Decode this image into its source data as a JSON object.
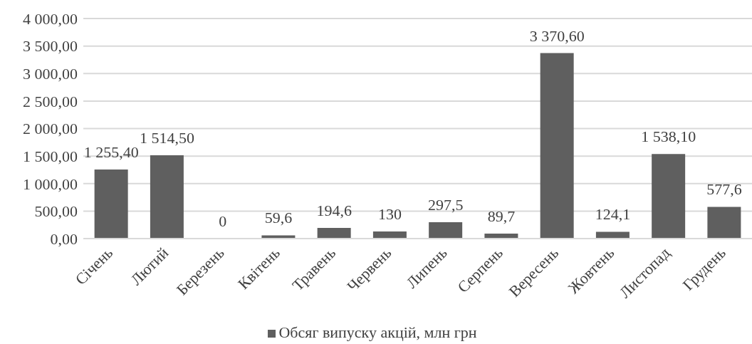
{
  "chart_data": {
    "type": "bar",
    "categories": [
      "Січень",
      "Лютий",
      "Березень",
      "Квітень",
      "Травень",
      "Червень",
      "Липень",
      "Серпень",
      "Вересень",
      "Жовтень",
      "Листопад",
      "Грудень"
    ],
    "series": [
      {
        "name": "Обсяг випуску акцій, млн грн",
        "color": "#5f5f5f",
        "values": [
          1255.4,
          1514.5,
          0,
          59.6,
          194.6,
          130,
          297.5,
          89.7,
          3370.6,
          124.1,
          1538.1,
          577.6
        ],
        "value_labels": [
          "1 255,40",
          "1 514,50",
          "0",
          "59,6",
          "194,6",
          "130",
          "297,5",
          "89,7",
          "3 370,60",
          "124,1",
          "1 538,10",
          "577,6"
        ]
      }
    ],
    "ylim": [
      0,
      4000
    ],
    "yticks": [
      {
        "value": 0,
        "label": "0,00"
      },
      {
        "value": 500,
        "label": "500,00"
      },
      {
        "value": 1000,
        "label": "1 000,00"
      },
      {
        "value": 1500,
        "label": "1 500,00"
      },
      {
        "value": 2000,
        "label": "2 000,00"
      },
      {
        "value": 2500,
        "label": "2 500,00"
      },
      {
        "value": 3000,
        "label": "3 000,00"
      },
      {
        "value": 3500,
        "label": "3 500,00"
      },
      {
        "value": 4000,
        "label": "4 000,00"
      }
    ],
    "grid": "y",
    "legend": "bottom"
  }
}
